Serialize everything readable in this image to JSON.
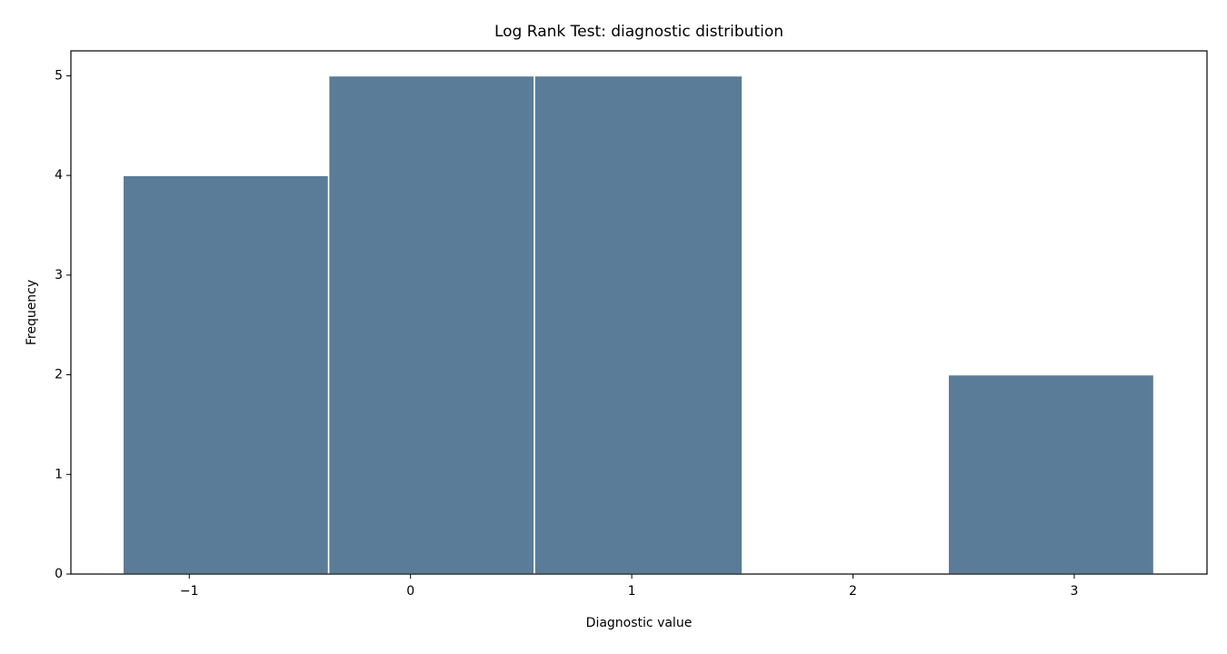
{
  "chart_data": {
    "type": "histogram",
    "title": "Log Rank Test: diagnostic distribution",
    "x_label": "Diagnostic value",
    "y_label": "Frequency",
    "bins": [
      -1.3,
      -0.37,
      0.56,
      1.5,
      2.43,
      3.36
    ],
    "values": [
      4,
      5,
      5,
      0,
      2
    ],
    "color": "#5b7c99",
    "edge_color": "#ffffff",
    "xlim": [
      -1.535,
      3.6
    ],
    "ylim": [
      0,
      5.25
    ],
    "xticks": [
      {
        "value": -1,
        "label": "−1"
      },
      0,
      1,
      2,
      3
    ],
    "yticks": [
      0,
      1,
      2,
      3,
      4,
      5
    ]
  }
}
